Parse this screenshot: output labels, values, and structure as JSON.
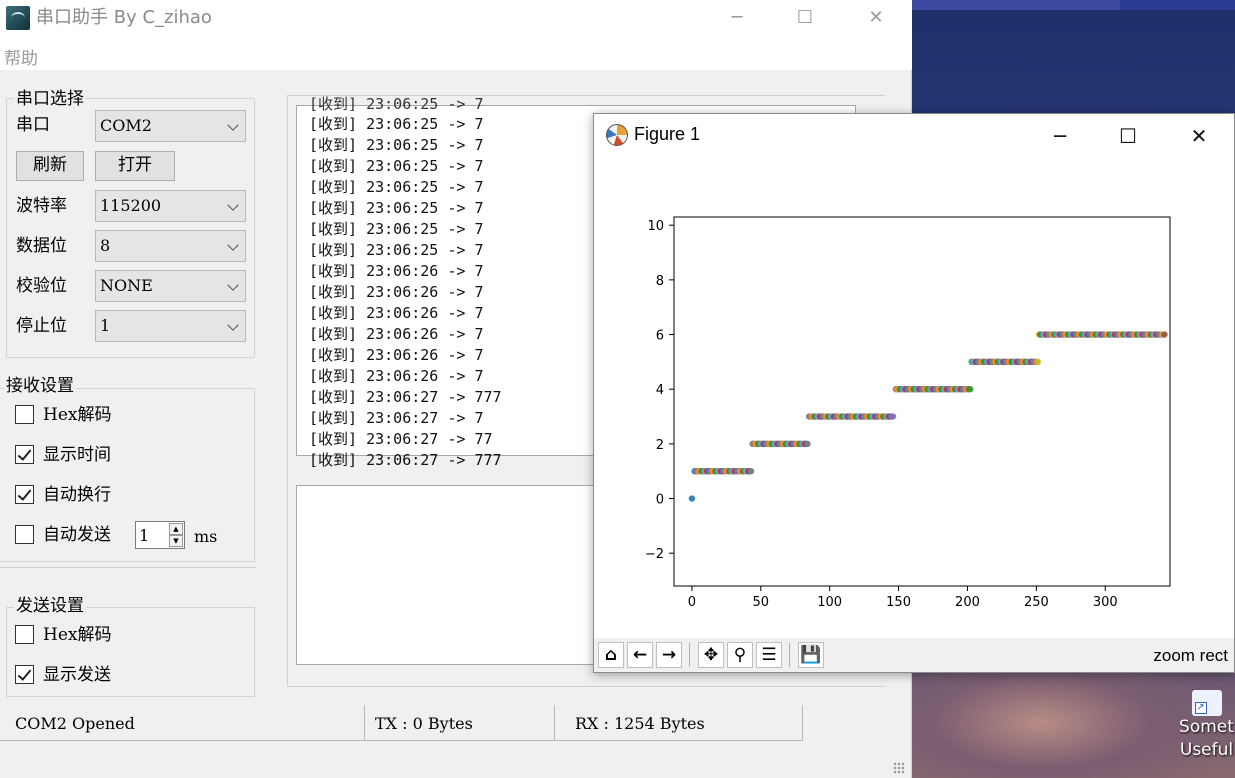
{
  "app": {
    "title": "串口助手   By  C_zihao",
    "minimize": "─",
    "maximize": "☐",
    "close": "✕",
    "menu_help": "帮助"
  },
  "serial_select": {
    "group_title": "串口选择",
    "port_label": "串口",
    "port_value": "COM2",
    "refresh": "刷新",
    "open": "打开",
    "baud_label": "波特率",
    "baud_value": "115200",
    "databits_label": "数据位",
    "databits_value": "8",
    "parity_label": "校验位",
    "parity_value": "NONE",
    "stopbits_label": "停止位",
    "stopbits_value": "1"
  },
  "receive_settings": {
    "group_title": "接收设置",
    "hex_decode_prefix": "Hex",
    "hex_decode_suffix": "解码",
    "hex_decode_checked": false,
    "show_time": "显示时间",
    "show_time_checked": true,
    "auto_wrap": "自动换行",
    "auto_wrap_checked": true,
    "auto_send": "自动发送",
    "auto_send_checked": false,
    "interval_value": "1",
    "interval_unit": "ms"
  },
  "send_settings": {
    "group_title": "发送设置",
    "hex_decode_prefix": "Hex",
    "hex_decode_suffix": "解码",
    "hex_decode_checked": false,
    "show_send": "显示发送",
    "show_send_checked": true
  },
  "receive_log": [
    "[收到] 23:06:25 -> 7",
    "[收到] 23:06:25 -> 7",
    "[收到] 23:06:25 -> 7",
    "[收到] 23:06:25 -> 7",
    "[收到] 23:06:25 -> 7",
    "[收到] 23:06:25 -> 7",
    "[收到] 23:06:25 -> 7",
    "[收到] 23:06:26 -> 7",
    "[收到] 23:06:26 -> 7",
    "[收到] 23:06:26 -> 7",
    "[收到] 23:06:26 -> 7",
    "[收到] 23:06:26 -> 7",
    "[收到] 23:06:26 -> 7",
    "[收到] 23:06:27 -> 777",
    "[收到] 23:06:27 -> 7",
    "[收到] 23:06:27 -> 77",
    "[收到] 23:06:27 -> 777"
  ],
  "status": {
    "port": "COM2  Opened",
    "tx": "TX : 0 Bytes",
    "rx": "RX : 1254 Bytes"
  },
  "figure": {
    "title": "Figure 1",
    "minimize": "─",
    "maximize": "☐",
    "close": "✕",
    "toolbar_icons": [
      "home-icon",
      "back-icon",
      "forward-icon",
      "pan-icon",
      "zoom-icon",
      "configure-icon",
      "save-icon"
    ],
    "toolbar_glyphs": [
      "⌂",
      "←",
      "→",
      "✥",
      "⚲",
      "☰",
      "💾"
    ],
    "mode_label": "zoom rect"
  },
  "desktop": {
    "icon_label_1": "Somet",
    "icon_label_2": "Useful"
  },
  "chart_data": {
    "type": "scatter",
    "title": "",
    "xlabel": "",
    "ylabel": "",
    "xlim": [
      -13,
      347
    ],
    "ylim": [
      -3.2,
      10.3
    ],
    "xticks": [
      0,
      50,
      100,
      150,
      200,
      250,
      300
    ],
    "yticks": [
      -2,
      0,
      2,
      4,
      6,
      8,
      10
    ],
    "grid": false,
    "palette": [
      "#1f77b4",
      "#ff7f0e",
      "#2ca02c",
      "#d62728",
      "#9467bd",
      "#8c564b",
      "#e377c2",
      "#7f7f7f",
      "#bcbd22",
      "#17becf"
    ],
    "segments": [
      {
        "y": 0,
        "x_start": 0,
        "x_end": 0
      },
      {
        "y": 1,
        "x_start": 2,
        "x_end": 43
      },
      {
        "y": 2,
        "x_start": 44,
        "x_end": 84
      },
      {
        "y": 3,
        "x_start": 85,
        "x_end": 146
      },
      {
        "y": 4,
        "x_start": 148,
        "x_end": 202
      },
      {
        "y": 5,
        "x_start": 203,
        "x_end": 251
      },
      {
        "y": 6,
        "x_start": 252,
        "x_end": 343
      }
    ]
  }
}
